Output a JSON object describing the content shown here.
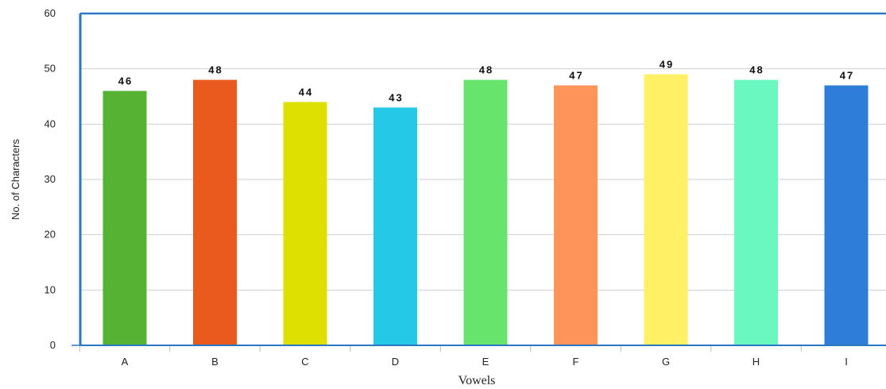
{
  "chart_data": {
    "type": "bar",
    "categories": [
      "A",
      "B",
      "C",
      "D",
      "E",
      "F",
      "G",
      "H",
      "I"
    ],
    "values": [
      46,
      48,
      44,
      43,
      48,
      47,
      49,
      48,
      47
    ],
    "colors": [
      "#55b233",
      "#e85a1e",
      "#dde000",
      "#25c8e6",
      "#66e46c",
      "#ff955a",
      "#fff066",
      "#6af8c0",
      "#2e7ed8"
    ],
    "title": "",
    "xlabel": "Vowels",
    "ylabel": "No. of Characters",
    "ylim": [
      0,
      60
    ],
    "yticks": [
      0,
      10,
      20,
      30,
      40,
      50,
      60
    ],
    "grid": true,
    "legend": "none"
  }
}
